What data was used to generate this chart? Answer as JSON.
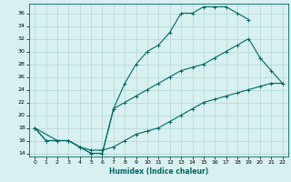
{
  "title": "",
  "xlabel": "Humidex (Indice chaleur)",
  "ylabel": "",
  "bg_color": "#d8f0f0",
  "grid_color": "#b8dada",
  "line_color": "#006868",
  "xlim": [
    -0.5,
    22.5
  ],
  "ylim": [
    13.5,
    37.5
  ],
  "xticks": [
    0,
    1,
    2,
    3,
    4,
    5,
    6,
    7,
    8,
    9,
    10,
    11,
    12,
    13,
    14,
    15,
    16,
    17,
    18,
    19,
    20,
    21,
    22
  ],
  "yticks": [
    14,
    16,
    18,
    20,
    22,
    24,
    26,
    28,
    30,
    32,
    34,
    36
  ],
  "curve1_x": [
    0,
    1,
    2,
    3,
    4,
    5,
    6,
    7,
    8,
    9,
    10,
    11,
    12,
    13,
    14,
    15,
    16,
    17,
    18,
    19
  ],
  "curve1_y": [
    18,
    16,
    16,
    16,
    15,
    14,
    14,
    21,
    25,
    28,
    30,
    31,
    33,
    36,
    36,
    37,
    37,
    37,
    36,
    35
  ],
  "curve2_x": [
    0,
    1,
    2,
    3,
    4,
    5,
    6,
    7,
    8,
    9,
    10,
    11,
    12,
    13,
    14,
    15,
    16,
    17,
    18,
    19,
    20,
    21,
    22
  ],
  "curve2_y": [
    18,
    16,
    16,
    16,
    15,
    14,
    14,
    21,
    22,
    23,
    24,
    25,
    26,
    27,
    27.5,
    28,
    29,
    30,
    31,
    32,
    29,
    27,
    25
  ],
  "curve3_x": [
    0,
    2,
    3,
    4,
    5,
    6,
    7,
    8,
    9,
    10,
    11,
    12,
    13,
    14,
    15,
    16,
    17,
    18,
    19,
    20,
    21,
    22
  ],
  "curve3_y": [
    18,
    16,
    16,
    15,
    14.5,
    14.5,
    15,
    16,
    17,
    17.5,
    18,
    19,
    20,
    21,
    22,
    22.5,
    23,
    23.5,
    24,
    24.5,
    25,
    25
  ]
}
